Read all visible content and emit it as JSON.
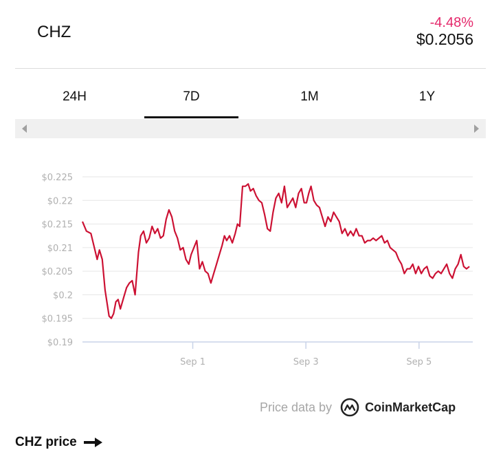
{
  "header": {
    "symbol": "CHZ",
    "change": "-4.48%",
    "price": "$0.2056",
    "change_color": "#e5286b"
  },
  "tabs": [
    {
      "label": "24H",
      "active": false
    },
    {
      "label": "7D",
      "active": true
    },
    {
      "label": "1M",
      "active": false
    },
    {
      "label": "1Y",
      "active": false
    }
  ],
  "icons": {
    "scroll_left": "triangle-left-icon",
    "scroll_right": "triangle-right-icon",
    "logo": "coinmarketcap-logo-icon",
    "footer_arrow": "arrow-right-icon"
  },
  "credit": {
    "text": "Price data by",
    "brand": "CoinMarketCap"
  },
  "footer": {
    "link_label": "CHZ price"
  },
  "chart_data": {
    "type": "line",
    "title": "",
    "xlabel": "",
    "ylabel": "",
    "line_color": "#cc1133",
    "ylim": [
      0.19,
      0.225
    ],
    "yticks": [
      0.19,
      0.195,
      0.2,
      0.205,
      0.21,
      0.215,
      0.22,
      0.225
    ],
    "ytick_labels": [
      "$0.19",
      "$0.195",
      "$0.2",
      "$0.205",
      "$0.21",
      "$0.215",
      "$0.22",
      "$0.225"
    ],
    "xlim": [
      -0.95,
      5.95
    ],
    "xticks": [
      1,
      3,
      5
    ],
    "xtick_labels": [
      "Sep 1",
      "Sep 3",
      "Sep 5"
    ],
    "grid": true,
    "legend": "none",
    "x": [
      -0.95,
      -0.88,
      -0.8,
      -0.73,
      -0.69,
      -0.65,
      -0.6,
      -0.55,
      -0.48,
      -0.44,
      -0.4,
      -0.36,
      -0.32,
      -0.28,
      -0.22,
      -0.17,
      -0.12,
      -0.07,
      -0.02,
      0.04,
      0.08,
      0.13,
      0.18,
      0.23,
      0.28,
      0.33,
      0.38,
      0.43,
      0.48,
      0.53,
      0.58,
      0.63,
      0.68,
      0.73,
      0.78,
      0.83,
      0.88,
      0.93,
      0.97,
      1.02,
      1.07,
      1.12,
      1.17,
      1.22,
      1.27,
      1.32,
      1.37,
      1.42,
      1.47,
      1.52,
      1.56,
      1.6,
      1.65,
      1.7,
      1.75,
      1.79,
      1.83,
      1.88,
      1.93,
      1.98,
      2.02,
      2.07,
      2.12,
      2.17,
      2.22,
      2.27,
      2.32,
      2.37,
      2.42,
      2.47,
      2.52,
      2.57,
      2.62,
      2.67,
      2.72,
      2.77,
      2.82,
      2.87,
      2.92,
      2.97,
      3.01,
      3.05,
      3.09,
      3.14,
      3.19,
      3.24,
      3.29,
      3.34,
      3.39,
      3.44,
      3.49,
      3.54,
      3.59,
      3.64,
      3.69,
      3.74,
      3.79,
      3.84,
      3.89,
      3.94,
      3.99,
      4.04,
      4.09,
      4.14,
      4.19,
      4.24,
      4.29,
      4.34,
      4.39,
      4.44,
      4.49,
      4.54,
      4.59,
      4.64,
      4.69,
      4.74,
      4.79,
      4.84,
      4.89,
      4.94,
      4.99,
      5.04,
      5.09,
      5.14,
      5.19,
      5.24,
      5.29,
      5.34,
      5.39,
      5.44,
      5.49,
      5.54,
      5.59,
      5.64,
      5.69,
      5.74,
      5.79,
      5.84,
      5.89
    ],
    "y": [
      0.2155,
      0.2135,
      0.213,
      0.2095,
      0.2075,
      0.2095,
      0.2075,
      0.201,
      0.1955,
      0.195,
      0.196,
      0.1985,
      0.199,
      0.197,
      0.1995,
      0.2015,
      0.2025,
      0.203,
      0.2,
      0.209,
      0.2125,
      0.2135,
      0.211,
      0.212,
      0.2145,
      0.213,
      0.214,
      0.212,
      0.2125,
      0.216,
      0.218,
      0.2165,
      0.2135,
      0.212,
      0.2095,
      0.21,
      0.2075,
      0.2065,
      0.2085,
      0.21,
      0.2115,
      0.2055,
      0.207,
      0.205,
      0.2045,
      0.2025,
      0.2045,
      0.2065,
      0.2085,
      0.2105,
      0.2125,
      0.2115,
      0.2125,
      0.211,
      0.213,
      0.215,
      0.2145,
      0.223,
      0.223,
      0.2235,
      0.222,
      0.2225,
      0.221,
      0.22,
      0.2195,
      0.217,
      0.214,
      0.2135,
      0.2175,
      0.2205,
      0.2215,
      0.2195,
      0.223,
      0.2185,
      0.2195,
      0.2205,
      0.2185,
      0.2215,
      0.2225,
      0.2195,
      0.2195,
      0.2215,
      0.223,
      0.22,
      0.219,
      0.2185,
      0.2165,
      0.2145,
      0.2165,
      0.2155,
      0.2175,
      0.2165,
      0.2155,
      0.213,
      0.214,
      0.2125,
      0.2135,
      0.2125,
      0.214,
      0.2125,
      0.2125,
      0.211,
      0.2115,
      0.2115,
      0.212,
      0.2115,
      0.212,
      0.2125,
      0.211,
      0.2115,
      0.21,
      0.2095,
      0.209,
      0.2075,
      0.2065,
      0.2045,
      0.2055,
      0.2055,
      0.2065,
      0.2045,
      0.206,
      0.2045,
      0.2055,
      0.206,
      0.204,
      0.2035,
      0.2045,
      0.205,
      0.2045,
      0.2055,
      0.2065,
      0.2045,
      0.2035,
      0.2055,
      0.2065,
      0.2085,
      0.206,
      0.2055,
      0.206
    ]
  }
}
